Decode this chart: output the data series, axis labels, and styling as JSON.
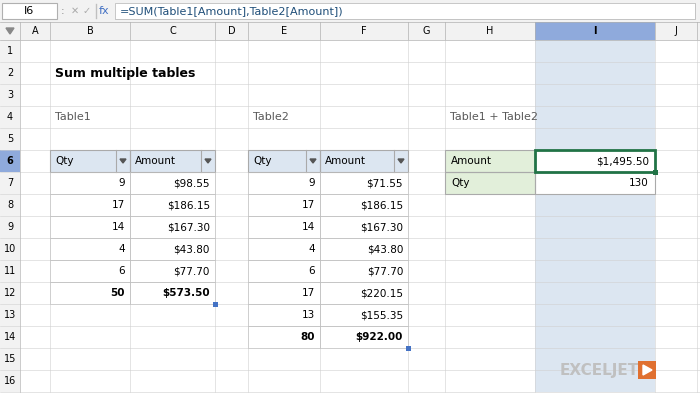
{
  "title": "Sum multiple tables",
  "formula_bar_cell": "I6",
  "formula_bar_text": "=SUM(Table1[Amount],Table2[Amount])",
  "table1_label": "Table1",
  "table2_label": "Table2",
  "table3_label": "Table1 + Table2",
  "table1_data": [
    [
      "9",
      "$98.55"
    ],
    [
      "17",
      "$186.15"
    ],
    [
      "14",
      "$167.30"
    ],
    [
      "4",
      "$43.80"
    ],
    [
      "6",
      "$77.70"
    ],
    [
      "50",
      "$573.50"
    ]
  ],
  "table2_data": [
    [
      "9",
      "$71.55"
    ],
    [
      "17",
      "$186.15"
    ],
    [
      "14",
      "$167.30"
    ],
    [
      "4",
      "$43.80"
    ],
    [
      "6",
      "$77.70"
    ],
    [
      "17",
      "$220.15"
    ],
    [
      "13",
      "$155.35"
    ],
    [
      "80",
      "$922.00"
    ]
  ],
  "table3_data": [
    [
      "Amount",
      "$1,495.50"
    ],
    [
      "Qty",
      "130"
    ]
  ],
  "bg_color": "#f2f2f2",
  "white": "#ffffff",
  "header_bg": "#dce6f1",
  "grid_color": "#c0c0c0",
  "col_header_bg": "#f2f2f2",
  "selected_col_hdr_bg": "#8faadc",
  "selected_col_bg": "#dce6f1",
  "selected_cell_border": "#217346",
  "table_label_color": "#595959",
  "title_color": "#000000",
  "toolbar_bg": "#f2f2f2",
  "exceljet_orange": "#e07030",
  "table3_header_bg": "#e2efda",
  "formula_color": "#1f4e79"
}
